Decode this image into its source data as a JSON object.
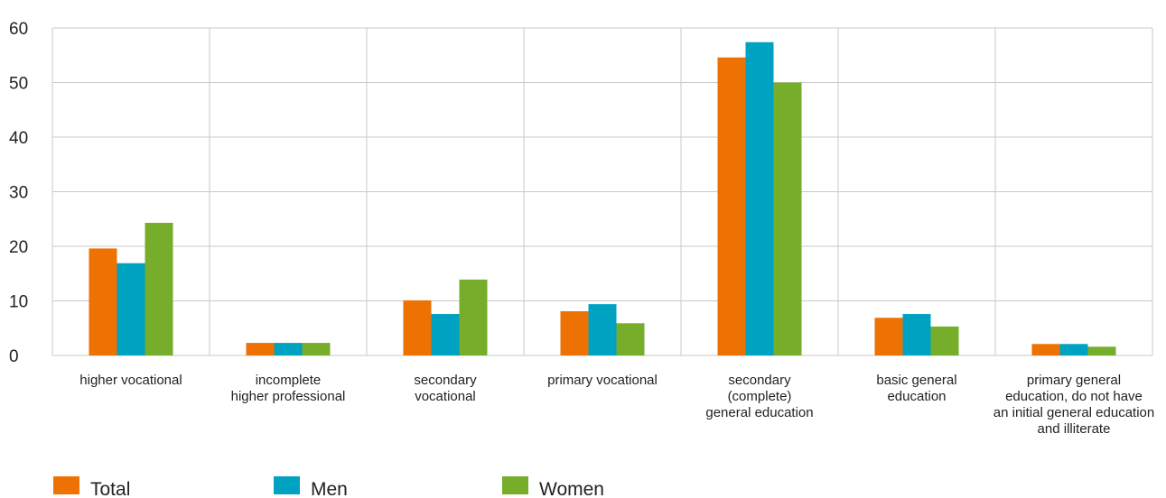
{
  "chart_data": {
    "type": "bar",
    "title": "",
    "xlabel": "",
    "ylabel": "",
    "ylim": [
      0,
      60
    ],
    "yticks": [
      0,
      10,
      20,
      30,
      40,
      50,
      60
    ],
    "grid": true,
    "legend_position": "bottom-left",
    "categories": [
      [
        "higher vocational"
      ],
      [
        "incomplete",
        "higher professional"
      ],
      [
        "secondary",
        "vocational"
      ],
      [
        "primary vocational"
      ],
      [
        "secondary",
        "(complete)",
        "general education"
      ],
      [
        "basic general",
        "education"
      ],
      [
        "primary general",
        "education, do not have",
        "an initial general education",
        "and illiterate"
      ]
    ],
    "series": [
      {
        "name": "Total",
        "color": "#ee7203",
        "values": [
          19.6,
          2.3,
          10.1,
          8.1,
          54.6,
          6.9,
          2.1
        ]
      },
      {
        "name": "Men",
        "color": "#00a2c1",
        "values": [
          16.9,
          2.3,
          7.6,
          9.4,
          57.4,
          7.6,
          2.1
        ]
      },
      {
        "name": "Women",
        "color": "#76ad2b",
        "values": [
          24.3,
          2.3,
          13.9,
          5.9,
          50.0,
          5.3,
          1.6
        ]
      }
    ]
  }
}
